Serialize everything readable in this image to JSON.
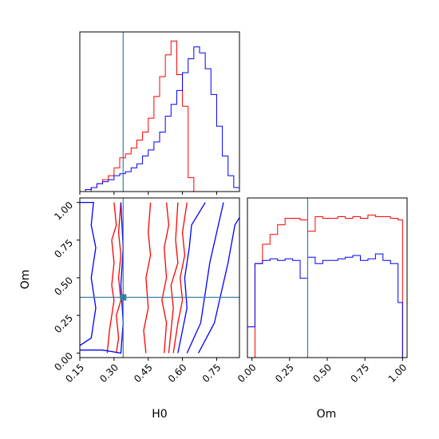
{
  "chart_data": {
    "type": "corner",
    "parameters": [
      "H0",
      "Om"
    ],
    "truth": {
      "H0": 0.34,
      "Om": 0.37
    },
    "series_colors": [
      "#ff0000",
      "#0000ff"
    ],
    "truth_color": "#3a7ca5",
    "panels": {
      "H0_hist": {
        "xlim": [
          0.15,
          0.85
        ],
        "bin_edges": [
          0.15,
          0.175,
          0.2,
          0.225,
          0.25,
          0.275,
          0.3,
          0.325,
          0.35,
          0.375,
          0.4,
          0.425,
          0.45,
          0.475,
          0.5,
          0.525,
          0.55,
          0.575,
          0.6,
          0.625,
          0.65,
          0.675,
          0.7,
          0.725,
          0.75,
          0.775,
          0.8,
          0.825,
          0.85
        ],
        "red_counts": [
          0,
          0,
          2,
          4,
          6,
          8,
          12,
          17,
          19,
          22,
          26,
          30,
          37,
          48,
          58,
          69,
          76,
          59,
          43,
          7,
          0,
          0,
          0,
          0,
          0,
          0,
          0,
          0
        ],
        "blue_counts": [
          0,
          1,
          2,
          4,
          5,
          6,
          8,
          9,
          10,
          12,
          14,
          18,
          21,
          25,
          30,
          38,
          44,
          51,
          60,
          67,
          73,
          70,
          62,
          49,
          33,
          18,
          8,
          2
        ]
      },
      "Om_hist": {
        "xlim": [
          -0.03,
          1.03
        ],
        "bin_edges": [
          -0.03,
          0.02,
          0.07,
          0.12,
          0.17,
          0.22,
          0.27,
          0.32,
          0.37,
          0.42,
          0.47,
          0.52,
          0.57,
          0.62,
          0.67,
          0.72,
          0.77,
          0.82,
          0.87,
          0.92,
          0.97,
          1.0
        ],
        "red_counts": [
          0,
          58,
          70,
          76,
          82,
          86,
          86,
          85,
          78,
          87,
          86,
          86,
          87,
          86,
          87,
          86,
          88,
          87,
          87,
          86,
          85
        ],
        "blue_counts": [
          19,
          58,
          60,
          61,
          60,
          61,
          60,
          49,
          62,
          58,
          60,
          60,
          61,
          62,
          63,
          60,
          61,
          64,
          60,
          58,
          34
        ]
      },
      "joint": {
        "xlim": [
          0.15,
          0.85
        ],
        "ylim": [
          -0.03,
          1.03
        ],
        "red_contours": [
          [
            [
              0.27,
              0.0
            ],
            [
              0.28,
              0.15
            ],
            [
              0.29,
              0.25
            ],
            [
              0.3,
              0.35
            ],
            [
              0.29,
              0.45
            ],
            [
              0.3,
              0.6
            ],
            [
              0.29,
              0.75
            ],
            [
              0.31,
              0.85
            ],
            [
              0.3,
              1.0
            ]
          ],
          [
            [
              0.31,
              0.0
            ],
            [
              0.32,
              0.1
            ],
            [
              0.31,
              0.25
            ],
            [
              0.33,
              0.35
            ],
            [
              0.32,
              0.5
            ],
            [
              0.33,
              0.65
            ],
            [
              0.32,
              0.8
            ],
            [
              0.33,
              1.0
            ]
          ],
          [
            [
              0.44,
              0.0
            ],
            [
              0.43,
              0.15
            ],
            [
              0.45,
              0.3
            ],
            [
              0.44,
              0.5
            ],
            [
              0.46,
              0.65
            ],
            [
              0.45,
              0.8
            ],
            [
              0.46,
              1.0
            ]
          ],
          [
            [
              0.52,
              0.0
            ],
            [
              0.53,
              0.2
            ],
            [
              0.51,
              0.35
            ],
            [
              0.53,
              0.5
            ],
            [
              0.52,
              0.7
            ],
            [
              0.54,
              0.85
            ],
            [
              0.53,
              1.0
            ]
          ],
          [
            [
              0.54,
              0.0
            ],
            [
              0.55,
              0.15
            ],
            [
              0.56,
              0.3
            ],
            [
              0.55,
              0.45
            ],
            [
              0.58,
              0.6
            ],
            [
              0.57,
              0.75
            ],
            [
              0.58,
              1.0
            ]
          ],
          [
            [
              0.56,
              0.0
            ],
            [
              0.58,
              0.2
            ],
            [
              0.6,
              0.35
            ],
            [
              0.59,
              0.5
            ],
            [
              0.61,
              0.65
            ],
            [
              0.6,
              0.8
            ],
            [
              0.62,
              1.0
            ]
          ]
        ],
        "blue_contours": [
          [
            [
              0.15,
              0.02
            ],
            [
              0.25,
              0.02
            ],
            [
              0.33,
              0.0
            ],
            [
              0.34,
              0.2
            ],
            [
              0.33,
              0.45
            ],
            [
              0.34,
              0.7
            ],
            [
              0.33,
              1.0
            ]
          ],
          [
            [
              0.15,
              1.0
            ],
            [
              0.21,
              1.0
            ],
            [
              0.2,
              0.85
            ],
            [
              0.22,
              0.7
            ],
            [
              0.2,
              0.5
            ],
            [
              0.22,
              0.3
            ],
            [
              0.2,
              0.1
            ],
            [
              0.15,
              0.05
            ]
          ],
          [
            [
              0.58,
              0.0
            ],
            [
              0.62,
              0.3
            ],
            [
              0.61,
              0.5
            ],
            [
              0.63,
              0.7
            ],
            [
              0.64,
              0.85
            ],
            [
              0.7,
              1.0
            ]
          ],
          [
            [
              0.62,
              0.0
            ],
            [
              0.68,
              0.2
            ],
            [
              0.7,
              0.4
            ],
            [
              0.72,
              0.6
            ],
            [
              0.75,
              0.8
            ],
            [
              0.78,
              1.0
            ]
          ],
          [
            [
              0.67,
              0.0
            ],
            [
              0.74,
              0.2
            ],
            [
              0.77,
              0.4
            ],
            [
              0.8,
              0.6
            ],
            [
              0.83,
              0.85
            ],
            [
              0.85,
              0.9
            ]
          ]
        ]
      }
    },
    "tick_labels": {
      "H0": [
        "0.15",
        "0.30",
        "0.45",
        "0.60",
        "0.75"
      ],
      "Om": [
        "0.00",
        "0.25",
        "0.50",
        "0.75",
        "1.00"
      ]
    },
    "tick_values": {
      "H0": [
        0.15,
        0.3,
        0.45,
        0.6,
        0.75
      ],
      "Om": [
        0.0,
        0.25,
        0.5,
        0.75,
        1.0
      ]
    },
    "xlabel_joint": "H0",
    "ylabel_joint": "Om",
    "xlabel_om": "Om"
  }
}
